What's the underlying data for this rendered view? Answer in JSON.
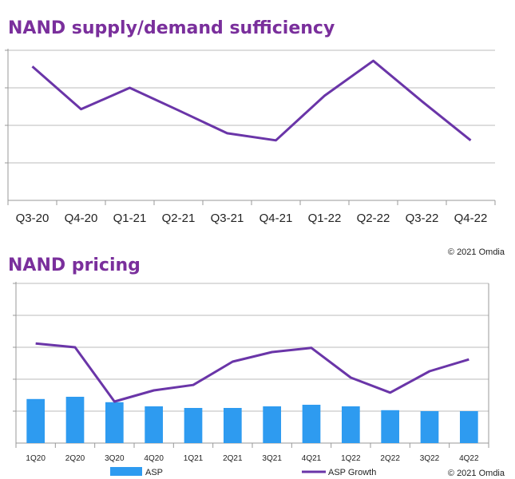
{
  "colors": {
    "title": "#7a2f9c",
    "line": "#6a35a8",
    "bar": "#2e9bf0",
    "grid": "#dddddd",
    "axis": "#999999"
  },
  "credit_top": "© 2021 Omdia",
  "credit_bottom": "© 2021 Omdia",
  "chart_data": [
    {
      "type": "line",
      "title": "NAND supply/demand sufficiency",
      "categories": [
        "Q3-20",
        "Q4-20",
        "Q1-21",
        "Q2-21",
        "Q3-21",
        "Q4-21",
        "Q1-22",
        "Q2-22",
        "Q3-22",
        "Q4-22"
      ],
      "series": [
        {
          "values": [
            3.57,
            2.43,
            3.0,
            2.4,
            1.79,
            1.6,
            2.79,
            3.72,
            2.64,
            1.6
          ]
        }
      ],
      "ylim": [
        0,
        4
      ],
      "y_tick_labels_shown": false,
      "grid": true
    },
    {
      "type": "bar+line",
      "title": "NAND pricing",
      "categories": [
        "1Q20",
        "2Q20",
        "3Q20",
        "4Q20",
        "1Q21",
        "2Q21",
        "3Q21",
        "4Q21",
        "1Q22",
        "2Q22",
        "3Q22",
        "4Q22"
      ],
      "series": [
        {
          "name": "ASP",
          "type": "bar",
          "values": [
            1.38,
            1.45,
            1.28,
            1.15,
            1.1,
            1.1,
            1.15,
            1.2,
            1.15,
            1.03,
            1.0,
            1.0
          ]
        },
        {
          "name": "ASP Growth",
          "type": "line",
          "values": [
            3.12,
            3.0,
            1.3,
            1.65,
            1.82,
            2.55,
            2.85,
            2.98,
            2.05,
            1.58,
            2.25,
            2.62
          ]
        }
      ],
      "ylim": [
        0,
        5
      ],
      "y_tick_labels_shown": false,
      "grid": true,
      "legend": "bottom"
    }
  ]
}
